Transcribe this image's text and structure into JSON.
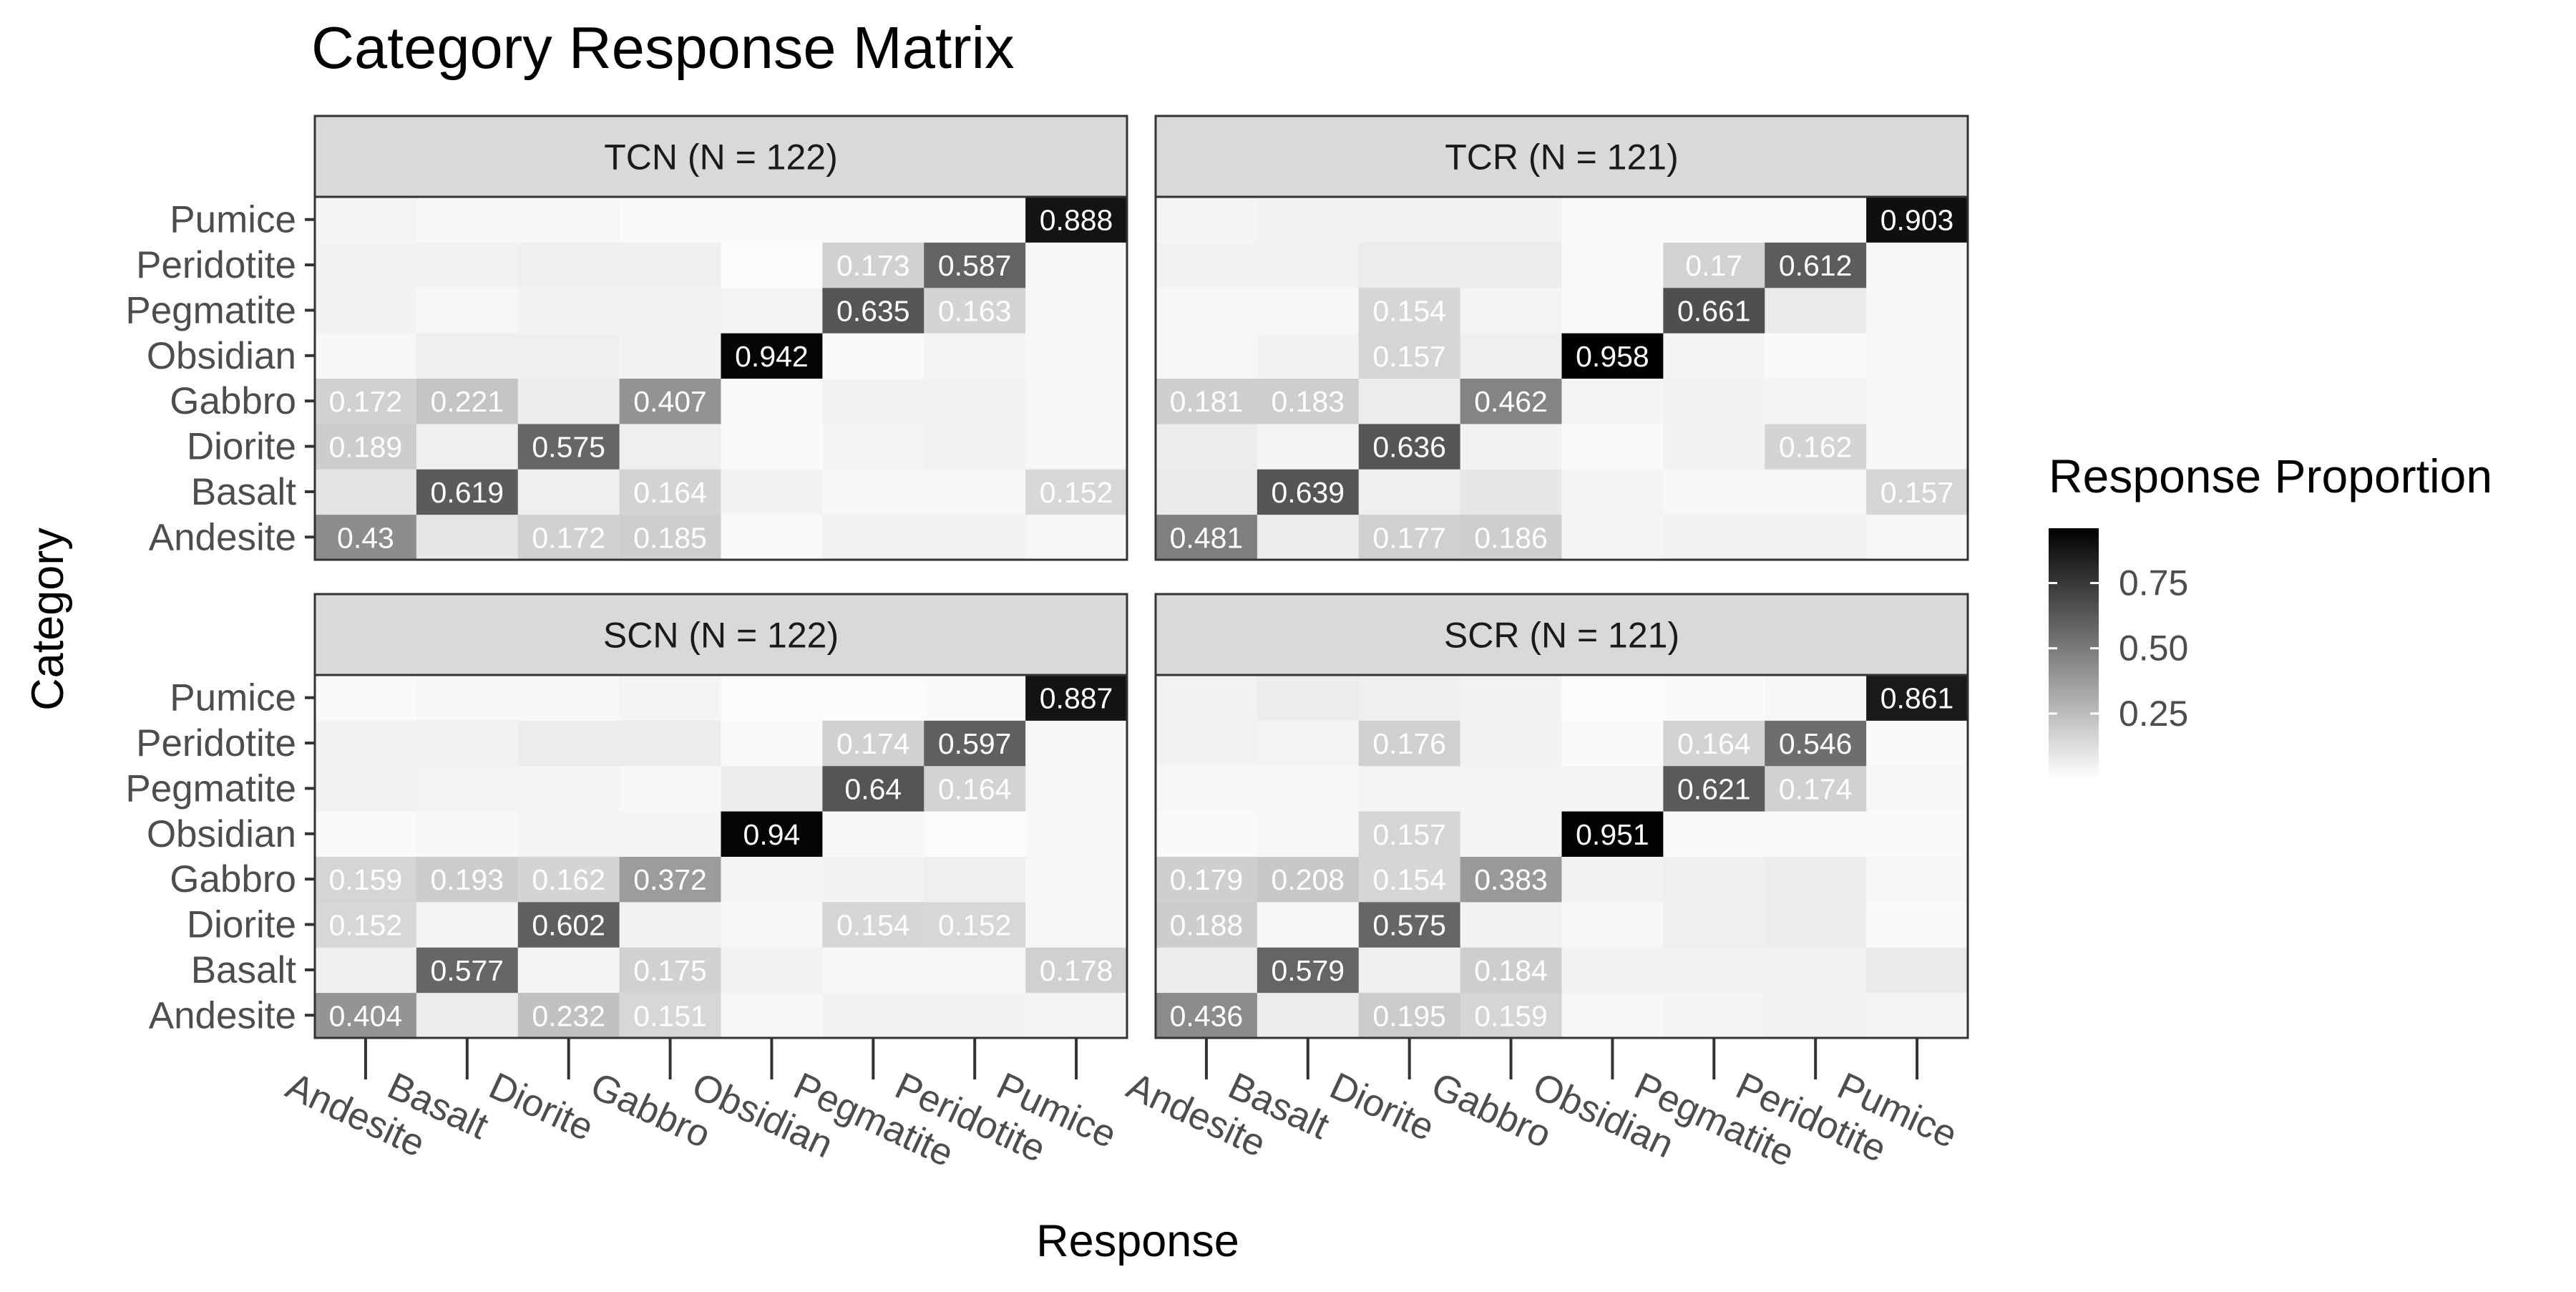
{
  "chart_data": {
    "type": "heatmap",
    "title": "Category Response Matrix",
    "xlabel": "Response",
    "ylabel": "Category",
    "legend_title": "Response Proportion",
    "legend_ticks": [
      "0.25",
      "0.50",
      "0.75"
    ],
    "legend_range": [
      0,
      0.96
    ],
    "legend_placement": "right",
    "categories": [
      "Andesite",
      "Basalt",
      "Diorite",
      "Gabbro",
      "Obsidian",
      "Pegmatite",
      "Peridotite",
      "Pumice"
    ],
    "responses": [
      "Andesite",
      "Basalt",
      "Diorite",
      "Gabbro",
      "Obsidian",
      "Pegmatite",
      "Peridotite",
      "Pumice"
    ],
    "label_threshold": 0.15,
    "panels": [
      {
        "label": "TCN (N = 122)",
        "values": [
          [
            0.43,
            0.09,
            0.172,
            0.185,
            0.02,
            0.05,
            0.05,
            0.03
          ],
          [
            0.1,
            0.619,
            0.06,
            0.164,
            0.05,
            0.03,
            0.03,
            0.152
          ],
          [
            0.189,
            0.06,
            0.575,
            0.06,
            0.02,
            0.04,
            0.05,
            0.03
          ],
          [
            0.172,
            0.221,
            0.07,
            0.407,
            0.02,
            0.05,
            0.05,
            0.03
          ],
          [
            0.03,
            0.06,
            0.06,
            0.05,
            0.942,
            0.02,
            0.04,
            0.03
          ],
          [
            0.05,
            0.03,
            0.05,
            0.05,
            0.04,
            0.635,
            0.163,
            0.03
          ],
          [
            0.05,
            0.05,
            0.06,
            0.06,
            0.01,
            0.173,
            0.587,
            0.03
          ],
          [
            0.04,
            0.03,
            0.03,
            0.02,
            0.02,
            0.02,
            0.02,
            0.888
          ]
        ]
      },
      {
        "label": "TCR (N = 121)",
        "values": [
          [
            0.481,
            0.07,
            0.177,
            0.186,
            0.04,
            0.05,
            0.05,
            0.03
          ],
          [
            0.08,
            0.639,
            0.06,
            0.09,
            0.04,
            0.03,
            0.03,
            0.157
          ],
          [
            0.07,
            0.04,
            0.636,
            0.05,
            0.02,
            0.05,
            0.162,
            0.03
          ],
          [
            0.181,
            0.183,
            0.07,
            0.462,
            0.04,
            0.05,
            0.04,
            0.03
          ],
          [
            0.03,
            0.05,
            0.157,
            0.06,
            0.958,
            0.04,
            0.02,
            0.03
          ],
          [
            0.03,
            0.03,
            0.154,
            0.04,
            0.02,
            0.661,
            0.08,
            0.03
          ],
          [
            0.05,
            0.05,
            0.07,
            0.07,
            0.02,
            0.17,
            0.612,
            0.03
          ],
          [
            0.04,
            0.05,
            0.05,
            0.05,
            0.02,
            0.02,
            0.02,
            0.903
          ]
        ]
      },
      {
        "label": "SCN (N = 122)",
        "values": [
          [
            0.404,
            0.07,
            0.232,
            0.151,
            0.03,
            0.05,
            0.05,
            0.04
          ],
          [
            0.06,
            0.577,
            0.04,
            0.175,
            0.05,
            0.03,
            0.03,
            0.178
          ],
          [
            0.152,
            0.04,
            0.602,
            0.05,
            0.03,
            0.154,
            0.152,
            0.03
          ],
          [
            0.159,
            0.193,
            0.162,
            0.372,
            0.04,
            0.05,
            0.06,
            0.03
          ],
          [
            0.02,
            0.03,
            0.04,
            0.04,
            0.94,
            0.03,
            0.01,
            0.03
          ],
          [
            0.05,
            0.04,
            0.04,
            0.03,
            0.07,
            0.64,
            0.164,
            0.03
          ],
          [
            0.05,
            0.05,
            0.07,
            0.07,
            0.02,
            0.174,
            0.597,
            0.03
          ],
          [
            0.02,
            0.03,
            0.03,
            0.04,
            0.01,
            0.01,
            0.02,
            0.887
          ]
        ]
      },
      {
        "label": "SCR (N = 121)",
        "values": [
          [
            0.436,
            0.07,
            0.195,
            0.159,
            0.03,
            0.04,
            0.05,
            0.04
          ],
          [
            0.07,
            0.579,
            0.06,
            0.184,
            0.05,
            0.05,
            0.05,
            0.08
          ],
          [
            0.188,
            0.03,
            0.575,
            0.05,
            0.03,
            0.06,
            0.07,
            0.02
          ],
          [
            0.179,
            0.208,
            0.154,
            0.383,
            0.05,
            0.06,
            0.07,
            0.03
          ],
          [
            0.02,
            0.03,
            0.157,
            0.04,
            0.951,
            0.02,
            0.02,
            0.02
          ],
          [
            0.03,
            0.03,
            0.04,
            0.04,
            0.04,
            0.621,
            0.174,
            0.03
          ],
          [
            0.05,
            0.04,
            0.176,
            0.05,
            0.02,
            0.164,
            0.546,
            0.02
          ],
          [
            0.05,
            0.07,
            0.06,
            0.05,
            0.01,
            0.02,
            0.03,
            0.861
          ]
        ]
      }
    ]
  }
}
